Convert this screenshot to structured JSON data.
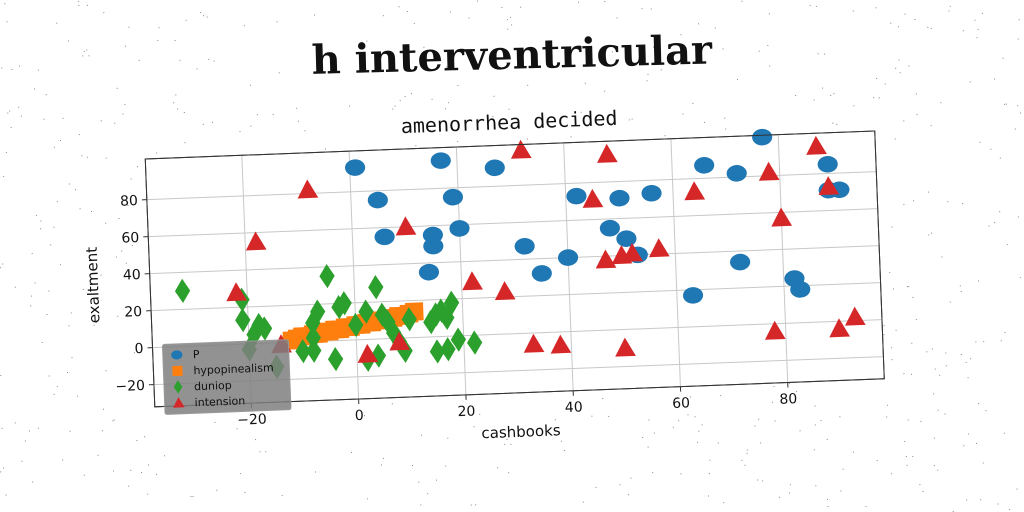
{
  "page_title": "h interventricular",
  "chart_data": {
    "type": "scatter",
    "title": "amenorrhea decided",
    "xlabel": "cashbooks",
    "ylabel": "exaltment",
    "xlim": [
      -38,
      98
    ],
    "ylim": [
      -32,
      102
    ],
    "xticks": [
      -20,
      0,
      20,
      40,
      60,
      80
    ],
    "yticks": [
      -20,
      0,
      20,
      40,
      60,
      80
    ],
    "grid": true,
    "legend_placement": "lower-left",
    "series": [
      {
        "name": "P",
        "marker": "circle",
        "color": "#1f77b4",
        "points": [
          [
            1,
            93
          ],
          [
            17,
            95
          ],
          [
            27,
            90
          ],
          [
            5,
            75
          ],
          [
            19,
            75
          ],
          [
            42,
            73
          ],
          [
            50,
            71
          ],
          [
            56,
            73
          ],
          [
            66,
            87
          ],
          [
            72,
            82
          ],
          [
            77,
            101
          ],
          [
            89,
            85
          ],
          [
            89,
            71
          ],
          [
            91,
            71
          ],
          [
            6,
            55
          ],
          [
            15,
            55
          ],
          [
            15,
            49
          ],
          [
            20,
            58
          ],
          [
            32,
            47
          ],
          [
            48,
            55
          ],
          [
            51,
            49
          ],
          [
            53,
            40
          ],
          [
            40,
            40
          ],
          [
            35,
            32
          ],
          [
            14,
            35
          ],
          [
            72,
            34
          ],
          [
            63,
            17
          ],
          [
            82,
            24
          ],
          [
            83,
            18
          ]
        ]
      },
      {
        "name": "hypopinealism",
        "marker": "square",
        "color": "#ff7f0e",
        "points": [
          [
            -12,
            1
          ],
          [
            -10,
            3
          ],
          [
            -8,
            4
          ],
          [
            -6,
            5
          ],
          [
            -4,
            6
          ],
          [
            -2,
            7
          ],
          [
            0,
            8
          ],
          [
            2,
            9
          ],
          [
            4,
            10
          ],
          [
            6,
            11
          ],
          [
            8,
            12
          ],
          [
            10,
            13
          ],
          [
            -11,
            2
          ],
          [
            -7,
            4
          ],
          [
            -3,
            6
          ],
          [
            1,
            8
          ],
          [
            5,
            10
          ],
          [
            9,
            12
          ],
          [
            11,
            14
          ],
          [
            -1,
            7
          ],
          [
            3,
            9
          ],
          [
            7,
            11
          ],
          [
            -5,
            5
          ],
          [
            -9,
            3
          ]
        ]
      },
      {
        "name": "duniop",
        "marker": "diamond",
        "color": "#2ca02c",
        "points": [
          [
            -32,
            30
          ],
          [
            -21,
            24
          ],
          [
            -21,
            13
          ],
          [
            -18,
            10
          ],
          [
            -17,
            8
          ],
          [
            -19,
            5
          ],
          [
            -8,
            10
          ],
          [
            -7,
            16
          ],
          [
            -5,
            35
          ],
          [
            -3,
            18
          ],
          [
            -2,
            20
          ],
          [
            0,
            8
          ],
          [
            2,
            15
          ],
          [
            4,
            28
          ],
          [
            5,
            13
          ],
          [
            6,
            9
          ],
          [
            7,
            3
          ],
          [
            8,
            -2
          ],
          [
            9,
            -7
          ],
          [
            2,
            -11
          ],
          [
            -4,
            -10
          ],
          [
            -8,
            -5
          ],
          [
            -8,
            2
          ],
          [
            -15,
            -13
          ],
          [
            -20,
            -3
          ],
          [
            14,
            8
          ],
          [
            15,
            12
          ],
          [
            16,
            14
          ],
          [
            17,
            10
          ],
          [
            18,
            18
          ],
          [
            15,
            -8
          ],
          [
            17,
            -7
          ],
          [
            19,
            -2
          ],
          [
            22,
            -4
          ],
          [
            -10,
            -5
          ],
          [
            10,
            10
          ],
          [
            4,
            -9
          ]
        ]
      },
      {
        "name": "intension",
        "marker": "triangle",
        "color": "#d62728",
        "points": [
          [
            -8,
            82
          ],
          [
            -18,
            55
          ],
          [
            -22,
            28
          ],
          [
            -14,
            -1
          ],
          [
            10,
            60
          ],
          [
            22,
            29
          ],
          [
            28,
            23
          ],
          [
            32,
            99
          ],
          [
            45,
            71
          ],
          [
            47,
            38
          ],
          [
            50,
            40
          ],
          [
            48,
            95
          ],
          [
            52,
            41
          ],
          [
            57,
            43
          ],
          [
            64,
            73
          ],
          [
            78,
            82
          ],
          [
            80,
            57
          ],
          [
            87,
            95
          ],
          [
            89,
            73
          ],
          [
            2,
            -8
          ],
          [
            8,
            -2
          ],
          [
            33,
            -6
          ],
          [
            38,
            -7
          ],
          [
            50,
            -10
          ],
          [
            78,
            -4
          ],
          [
            90,
            -4
          ],
          [
            93,
            2
          ]
        ]
      }
    ]
  }
}
